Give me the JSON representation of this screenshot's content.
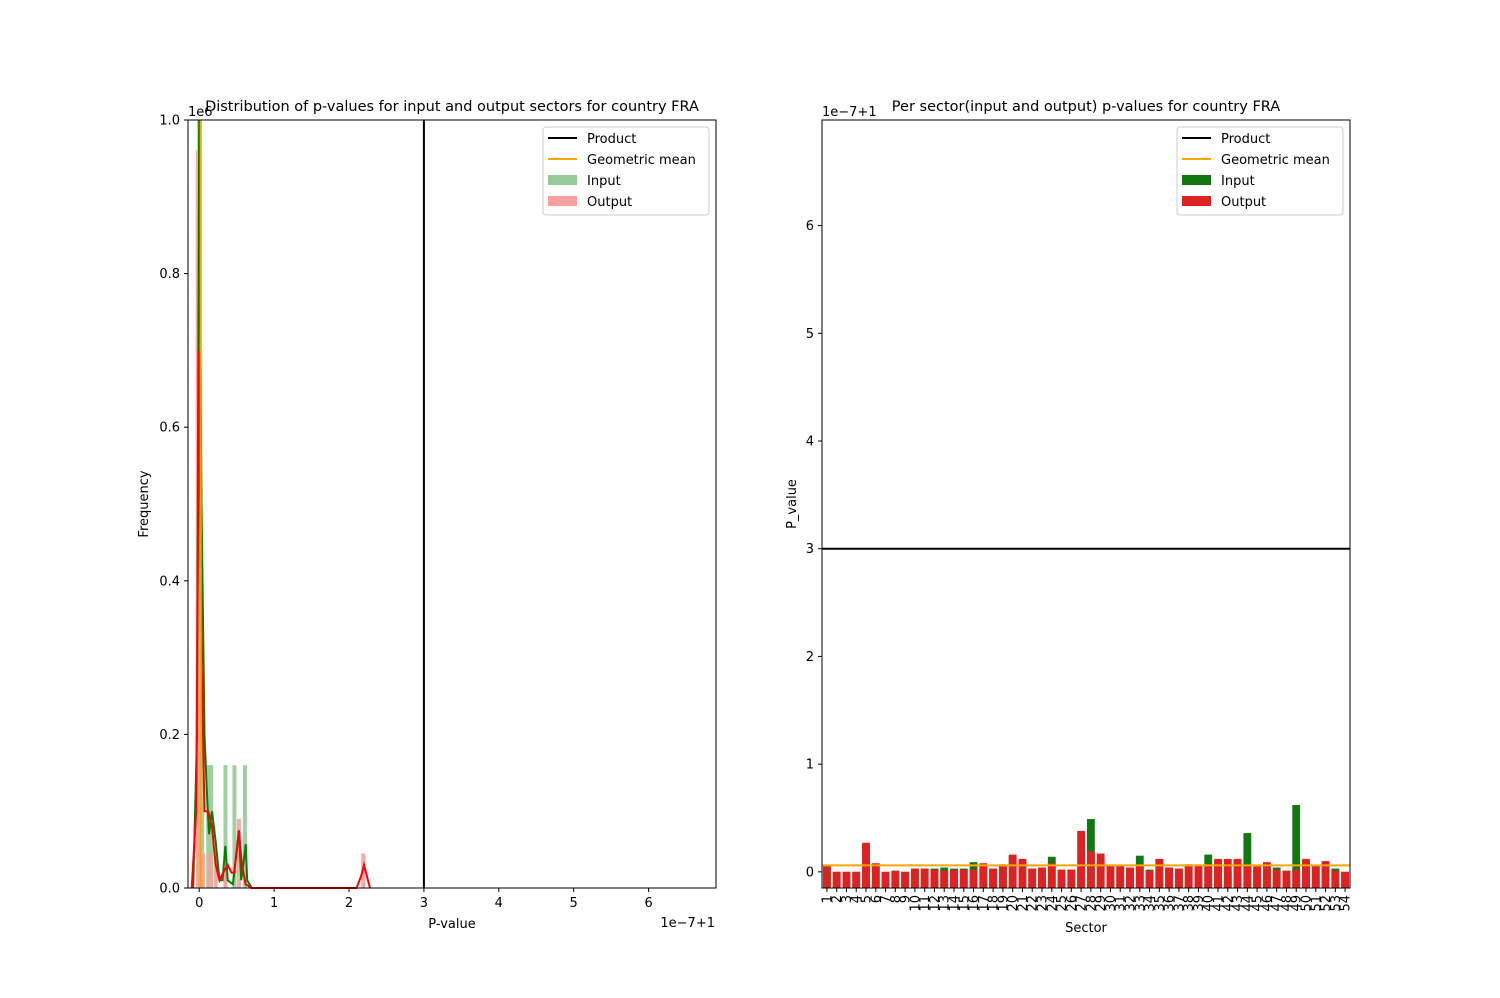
{
  "chart_data": [
    {
      "type": "histogram-kde",
      "title": "Distribution of p-values for input and output sectors for country FRA",
      "xlabel": "P-value",
      "ylabel": "Frequency",
      "x_offset_label": "1e−7+1",
      "y_scale_label": "1e6",
      "xlim": [
        -0.15,
        6.9
      ],
      "ylim": [
        0,
        1.0
      ],
      "xticks": [
        "0",
        "1",
        "2",
        "3",
        "4",
        "5",
        "6"
      ],
      "yticks": [
        "0.0",
        "0.2",
        "0.4",
        "0.6",
        "0.8",
        "1.0"
      ],
      "legend_position": "top-right",
      "legend": [
        "Product",
        "Geometric mean",
        "Input",
        "Output"
      ],
      "reference_lines": {
        "product": 3.0,
        "geometric_mean": 0.02
      },
      "colors": {
        "product": "#000000",
        "geometric_mean": "#ffa500",
        "input": "#008000",
        "output": "#ff0000",
        "input_hist": "#98c998",
        "output_hist": "#ff9f9f"
      },
      "input_hist": [
        {
          "x": 0.0,
          "y": 1.0
        },
        {
          "x": 0.04,
          "y": 0.2
        },
        {
          "x": 0.12,
          "y": 0.16
        },
        {
          "x": 0.16,
          "y": 0.16
        },
        {
          "x": 0.35,
          "y": 0.16
        },
        {
          "x": 0.47,
          "y": 0.16
        },
        {
          "x": 0.61,
          "y": 0.16
        }
      ],
      "output_hist": [
        {
          "x": -0.02,
          "y": 0.96
        },
        {
          "x": 0.05,
          "y": 0.045
        },
        {
          "x": 0.14,
          "y": 0.045
        },
        {
          "x": 0.22,
          "y": 0.045
        },
        {
          "x": 0.35,
          "y": 0.045
        },
        {
          "x": 0.53,
          "y": 0.09
        },
        {
          "x": 2.19,
          "y": 0.045
        }
      ],
      "input_kde": [
        [
          -0.08,
          0.0
        ],
        [
          -0.03,
          0.2
        ],
        [
          0.0,
          1.0
        ],
        [
          0.03,
          0.5
        ],
        [
          0.07,
          0.2
        ],
        [
          0.1,
          0.13
        ],
        [
          0.13,
          0.07
        ],
        [
          0.17,
          0.1
        ],
        [
          0.22,
          0.06
        ],
        [
          0.27,
          0.01
        ],
        [
          0.31,
          0.01
        ],
        [
          0.35,
          0.055
        ],
        [
          0.38,
          0.01
        ],
        [
          0.45,
          0.005
        ],
        [
          0.5,
          0.05
        ],
        [
          0.53,
          0.075
        ],
        [
          0.56,
          0.01
        ],
        [
          0.6,
          0.04
        ],
        [
          0.62,
          0.057
        ],
        [
          0.64,
          0.01
        ],
        [
          0.7,
          0.0
        ]
      ],
      "output_kde": [
        [
          -0.1,
          0.0
        ],
        [
          -0.04,
          0.1
        ],
        [
          0.0,
          0.7
        ],
        [
          0.03,
          0.3
        ],
        [
          0.07,
          0.1
        ],
        [
          0.12,
          0.1
        ],
        [
          0.17,
          0.08
        ],
        [
          0.22,
          0.03
        ],
        [
          0.27,
          0.01
        ],
        [
          0.32,
          0.02
        ],
        [
          0.38,
          0.03
        ],
        [
          0.43,
          0.02
        ],
        [
          0.47,
          0.02
        ],
        [
          0.53,
          0.075
        ],
        [
          0.57,
          0.03
        ],
        [
          0.62,
          0.005
        ],
        [
          0.7,
          0.0
        ],
        [
          2.1,
          0.0
        ],
        [
          2.16,
          0.015
        ],
        [
          2.2,
          0.03
        ],
        [
          2.24,
          0.015
        ],
        [
          2.28,
          0.0
        ]
      ]
    },
    {
      "type": "bar",
      "title": "Per sector(input and output) p-values for country FRA",
      "xlabel": "Sector",
      "ylabel": "P_value",
      "y_offset_label": "1e−7+1",
      "ylim": [
        -0.15,
        6.98
      ],
      "yticks": [
        "0",
        "1",
        "2",
        "3",
        "4",
        "5",
        "6"
      ],
      "legend_position": "top-right",
      "legend": [
        "Product",
        "Geometric mean",
        "Input",
        "Output"
      ],
      "reference_lines": {
        "product": 3.0,
        "geometric_mean": 0.06
      },
      "colors": {
        "product": "#000000",
        "geometric_mean": "#ffa500",
        "input": "#117711",
        "output": "#dd2222"
      },
      "categories": [
        "1",
        "2",
        "3",
        "4",
        "5",
        "6",
        "7",
        "8",
        "9",
        "10",
        "11",
        "12",
        "13",
        "14",
        "15",
        "16",
        "17",
        "18",
        "19",
        "20",
        "21",
        "22",
        "23",
        "24",
        "25",
        "26",
        "27",
        "28",
        "29",
        "30",
        "31",
        "32",
        "33",
        "34",
        "35",
        "36",
        "37",
        "38",
        "39",
        "40",
        "41",
        "42",
        "43",
        "44",
        "45",
        "46",
        "47",
        "48",
        "49",
        "50",
        "51",
        "52",
        "53",
        "54"
      ],
      "series": [
        {
          "name": "Input",
          "values": [
            0.06,
            0,
            0,
            0,
            0.25,
            0.07,
            0,
            0.01,
            0,
            0.03,
            0.03,
            0.03,
            0.04,
            0.03,
            0.03,
            0.09,
            0.07,
            0.03,
            0.07,
            0.14,
            0.11,
            0.03,
            0.04,
            0.14,
            0.02,
            0.02,
            0.03,
            0.49,
            0.1,
            0.06,
            0.06,
            0.03,
            0.15,
            0.02,
            0.11,
            0.04,
            0.03,
            0.07,
            0.05,
            0.16,
            0.1,
            0.01,
            0.11,
            0.36,
            0.04,
            0.05,
            0.04,
            0.01,
            0.62,
            0.1,
            0.05,
            0.07,
            0.03,
            0
          ]
        },
        {
          "name": "Output",
          "values": [
            0.05,
            0,
            0,
            0,
            0.27,
            0.08,
            0,
            0.01,
            0,
            0.03,
            0.03,
            0.02,
            0.01,
            0.02,
            0.02,
            0.02,
            0.08,
            0.03,
            0.06,
            0.16,
            0.12,
            0.03,
            0.04,
            0.08,
            0.02,
            0.02,
            0.38,
            0.19,
            0.17,
            0.06,
            0.06,
            0.04,
            0.06,
            0.01,
            0.12,
            0.04,
            0.03,
            0.06,
            0.06,
            0.07,
            0.12,
            0.12,
            0.12,
            0.06,
            0.05,
            0.09,
            0.02,
            0.01,
            0.02,
            0.12,
            0.06,
            0.1,
            0.01,
            0
          ]
        }
      ]
    }
  ]
}
